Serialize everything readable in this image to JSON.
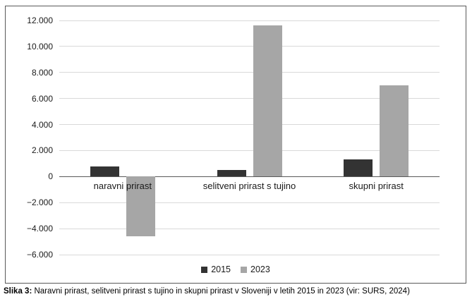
{
  "caption": {
    "label": "Slika 3:",
    "text": " Naravni prirast, selitveni prirast s tujino in skupni prirast v Sloveniji v letih 2015 in 2023 (vir: SURS, 2024)"
  },
  "chart_data": {
    "type": "bar",
    "title": "",
    "xlabel": "",
    "ylabel": "",
    "categories": [
      "naravni prirast",
      "selitveni prirast s tujino",
      "skupni prirast"
    ],
    "series": [
      {
        "name": "2015",
        "color": "#333333",
        "values": [
          800,
          500,
          1300
        ]
      },
      {
        "name": "2023",
        "color": "#a6a6a6",
        "values": [
          -4600,
          11600,
          7000
        ]
      }
    ],
    "ylim": [
      -6000,
      12000
    ],
    "ytick_step": 2000,
    "ytick_labels": [
      "12.000",
      "10.000",
      "8.000",
      "6.000",
      "4.000",
      "2.000",
      "0",
      "−2.000",
      "−4.000",
      "−6.000"
    ],
    "grid": true,
    "legend_position": "bottom-center",
    "colors": {
      "gridline": "#d9d9d9",
      "zero_axis": "#595959",
      "frame_border": "#595959",
      "text": "#1a1a1a"
    }
  }
}
